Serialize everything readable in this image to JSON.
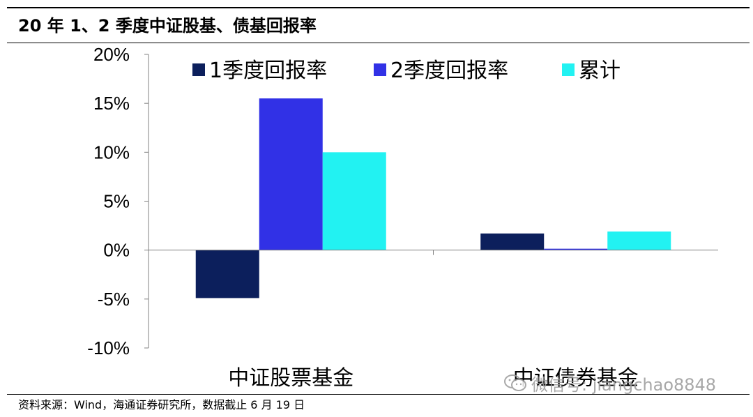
{
  "title": "20 年 1、2 季度中证股基、债基回报率",
  "source": "资料来源：Wind，海通证券研究所，数据截止 6 月 19 日",
  "watermark": "微信号: jiangchao8848",
  "colors": {
    "series1": "#0c1f5c",
    "series2": "#3131e6",
    "series3": "#22f2f2",
    "axis": "#808080"
  },
  "chart_data": {
    "type": "bar",
    "categories": [
      "中证股票基金",
      "中证债券基金"
    ],
    "series": [
      {
        "name": "1季度回报率",
        "values": [
          -4.9,
          1.7
        ]
      },
      {
        "name": "2季度回报率",
        "values": [
          15.5,
          0.1
        ]
      },
      {
        "name": "累计",
        "values": [
          10.0,
          1.9
        ]
      }
    ],
    "ylim": [
      -10,
      20
    ],
    "yticks": [
      20,
      15,
      10,
      5,
      0,
      -5,
      -10
    ],
    "ytick_labels": [
      "20%",
      "15%",
      "10%",
      "5%",
      "0%",
      "-5%",
      "-10%"
    ],
    "legend_position": "top",
    "grid": false
  }
}
